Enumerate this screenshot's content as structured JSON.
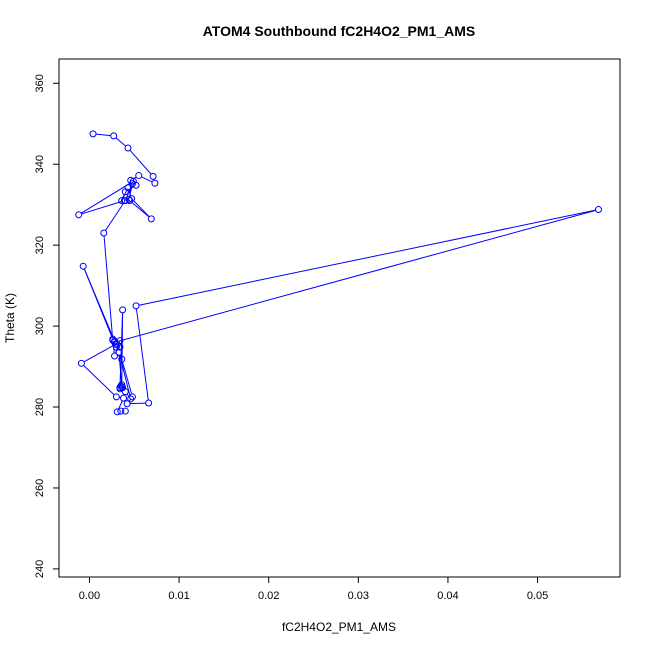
{
  "chart_data": {
    "type": "scatter",
    "title": "ATOM4 Southbound fC2H4O2_PM1_AMS",
    "xlabel": "fC2H4O2_PM1_AMS",
    "ylabel": "Theta (K)",
    "xlim": [
      -0.0034,
      0.0592
    ],
    "ylim": [
      238,
      366
    ],
    "x_ticks": [
      0.0,
      0.01,
      0.02,
      0.03,
      0.04,
      0.05
    ],
    "x_tick_labels": [
      "0.00",
      "0.01",
      "0.02",
      "0.03",
      "0.04",
      "0.05"
    ],
    "y_ticks": [
      240,
      260,
      280,
      300,
      320,
      340,
      360
    ],
    "y_tick_labels": [
      "240",
      "260",
      "280",
      "300",
      "320",
      "340",
      "360"
    ],
    "grid": false,
    "color": "#0000ff",
    "points": [
      [
        0.0004,
        347.5
      ],
      [
        0.0027,
        347.0
      ],
      [
        0.0043,
        344.0
      ],
      [
        0.0071,
        337.0
      ],
      [
        0.0073,
        335.3
      ],
      [
        0.0055,
        337.2
      ],
      [
        0.0046,
        336.0
      ],
      [
        0.0045,
        331.0
      ],
      [
        0.0069,
        326.5
      ],
      [
        0.0047,
        331.5
      ],
      [
        0.0043,
        334.2
      ],
      [
        0.0036,
        331.0
      ],
      [
        0.004,
        333.2
      ],
      [
        0.0052,
        334.8
      ],
      [
        0.0048,
        335.2
      ],
      [
        0.0044,
        331.3
      ],
      [
        0.0039,
        331.0
      ],
      [
        -0.0012,
        327.5
      ],
      [
        0.0049,
        335.8
      ],
      [
        0.004,
        331.0
      ],
      [
        0.0016,
        323.0
      ],
      [
        0.0026,
        296.5
      ],
      [
        0.003,
        294.8
      ],
      [
        0.0034,
        294.8
      ],
      [
        0.0034,
        296.4
      ],
      [
        0.0028,
        292.6
      ],
      [
        0.0026,
        296.8
      ],
      [
        -0.0007,
        314.8
      ],
      [
        0.0028,
        296.3
      ],
      [
        0.0031,
        295.5
      ],
      [
        0.0033,
        293.5
      ],
      [
        0.0036,
        285.0
      ],
      [
        0.0034,
        284.8
      ],
      [
        0.0037,
        304.0
      ],
      [
        0.0036,
        285.5
      ],
      [
        0.0035,
        285.2
      ],
      [
        0.0034,
        284.5
      ],
      [
        0.0037,
        284.8
      ],
      [
        0.004,
        283.8
      ],
      [
        0.0046,
        282.0
      ],
      [
        0.0033,
        293.5
      ],
      [
        0.0036,
        291.8
      ],
      [
        0.0048,
        282.5
      ],
      [
        0.0042,
        280.8
      ],
      [
        0.0066,
        281.0
      ],
      [
        0.0052,
        305.0
      ],
      [
        0.0568,
        328.8
      ],
      [
        0.0028,
        296.0
      ],
      [
        0.0029,
        295.5
      ],
      [
        -0.0009,
        290.8
      ],
      [
        0.003,
        282.5
      ],
      [
        0.0038,
        282.2
      ],
      [
        0.0031,
        278.8
      ],
      [
        0.0035,
        279.0
      ],
      [
        0.004,
        279.0
      ]
    ]
  }
}
